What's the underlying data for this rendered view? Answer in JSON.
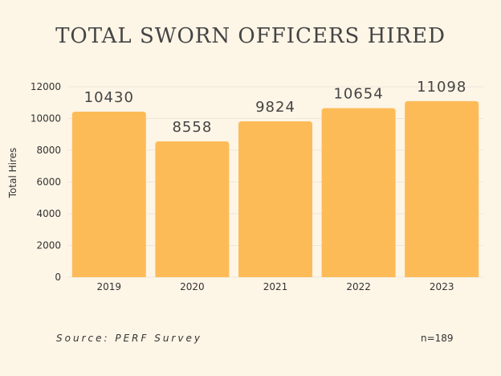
{
  "chart_data": {
    "type": "bar",
    "title": "TOTAL SWORN OFFICERS HIRED",
    "categories": [
      "2019",
      "2020",
      "2021",
      "2022",
      "2023"
    ],
    "values": [
      10430,
      8558,
      9824,
      10654,
      11098
    ],
    "data_labels": [
      "10430",
      "8558",
      "9824",
      "10654",
      "11098"
    ],
    "ylabel": "Total Hires",
    "xlabel": "",
    "ylim": [
      0,
      12000
    ],
    "yticks": [
      0,
      2000,
      4000,
      6000,
      8000,
      10000,
      12000
    ],
    "grid": true,
    "legend": "none",
    "bar_color": "#fdbb58",
    "grid_color": "#ece6dc"
  },
  "footer": {
    "source": "Source: PERF Survey",
    "n": "n=189"
  }
}
